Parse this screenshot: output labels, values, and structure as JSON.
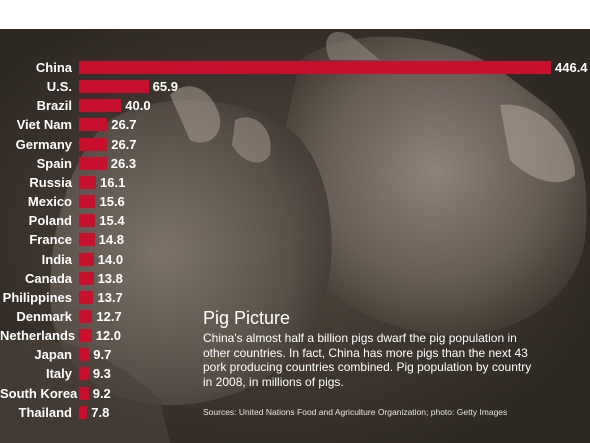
{
  "chart_data": {
    "type": "bar",
    "orientation": "horizontal",
    "title": "Pig Picture",
    "description": "China's almost half a billion pigs dwarf the pig population in other countries. In fact, China has more pigs than the next 43 pork producing countries combined. Pig population by country in 2008, in millions of pigs.",
    "source": "Sources: United Nations Food and Agriculture Organization; photo: Getty Images",
    "categories": [
      "China",
      "U.S.",
      "Brazil",
      "Viet Nam",
      "Germany",
      "Spain",
      "Russia",
      "Mexico",
      "Poland",
      "France",
      "India",
      "Canada",
      "Philippines",
      "Denmark",
      "Netherlands",
      "Japan",
      "Italy",
      "South Korea",
      "Thailand"
    ],
    "values": [
      446.4,
      65.9,
      40.0,
      26.7,
      26.7,
      26.3,
      16.1,
      15.6,
      15.4,
      14.8,
      14.0,
      13.8,
      13.7,
      12.7,
      12.0,
      9.7,
      9.3,
      9.2,
      7.8
    ],
    "value_labels": [
      "446.4",
      "65.9",
      "40.0",
      "26.7",
      "26.7",
      "26.3",
      "16.1",
      "15.6",
      "15.4",
      "14.8",
      "14.0",
      "13.8",
      "13.7",
      "12.7",
      "12.0",
      "9.7",
      "9.3",
      "9.2",
      "7.8"
    ],
    "xlim": [
      0,
      446.4
    ],
    "grid": false,
    "legend": "none",
    "colors": {
      "bar": "#c8102e",
      "text": "#ffffff",
      "background": "#3a322b"
    },
    "background_image": "photo-of-pigs"
  }
}
